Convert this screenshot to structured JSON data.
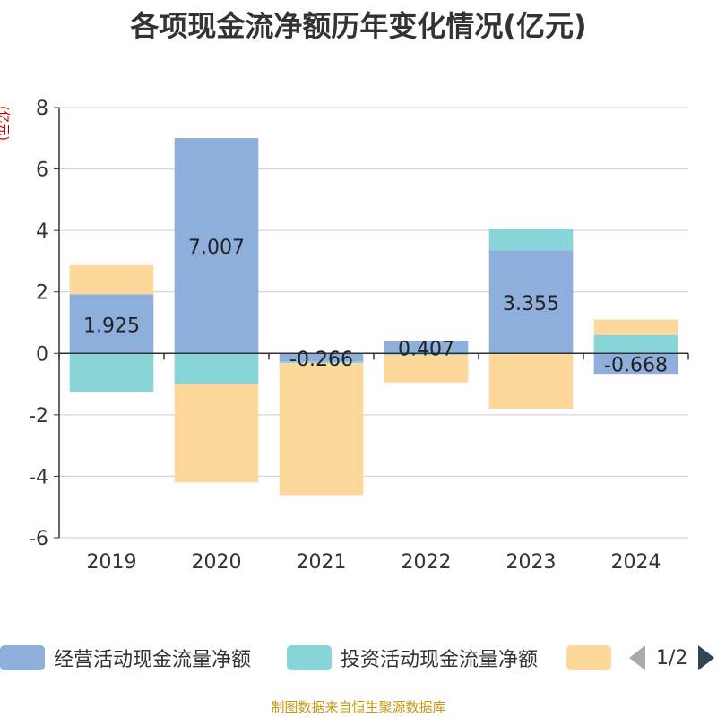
{
  "title": "各项现金流净额历年变化情况(亿元)",
  "y_unit": "(亿元)",
  "source": "制图数据来自恒生聚源数据库",
  "legend": {
    "items": [
      {
        "label": "经营活动现金流量净额",
        "color": "#8eaedb"
      },
      {
        "label": "投资活动现金流量净额",
        "color": "#88d5d8"
      },
      {
        "label": "",
        "color": "#fed89b"
      }
    ],
    "page": "1/2"
  },
  "chart_data": {
    "type": "bar",
    "stacked": true,
    "title": "各项现金流净额历年变化情况(亿元)",
    "ylabel": "(亿元)",
    "ylim": [
      -6,
      8
    ],
    "yticks": [
      -6,
      -4,
      -2,
      0,
      2,
      4,
      6,
      8
    ],
    "grid": true,
    "categories": [
      "2019",
      "2020",
      "2021",
      "2022",
      "2023",
      "2024"
    ],
    "series": [
      {
        "name": "经营活动现金流量净额",
        "color": "#8eaedb",
        "values": [
          1.925,
          7.007,
          -0.266,
          0.407,
          3.355,
          -0.668
        ],
        "labels": [
          "1.925",
          "7.007",
          "-0.266",
          "0.407",
          "3.355",
          "-0.668"
        ]
      },
      {
        "name": "投资活动现金流量净额",
        "color": "#88d5d8",
        "values": [
          -1.25,
          -1.0,
          -0.05,
          -0.05,
          0.7,
          0.6
        ]
      },
      {
        "color": "#fed89b",
        "values": [
          0.95,
          -3.2,
          -4.3,
          -0.9,
          -1.8,
          0.5
        ]
      }
    ]
  }
}
